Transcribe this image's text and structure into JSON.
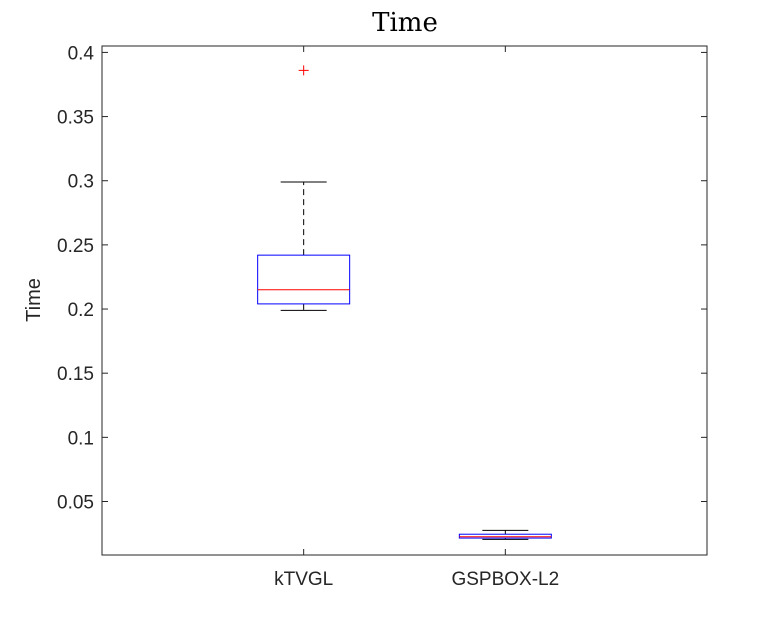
{
  "chart_data": {
    "type": "boxplot",
    "title": "Time",
    "xlabel": "",
    "ylabel": "Time",
    "ylim": [
      0.0083,
      0.405
    ],
    "yticks": [
      "0.05",
      "0.1",
      "0.15",
      "0.2",
      "0.25",
      "0.3",
      "0.35",
      "0.4"
    ],
    "categories": [
      "kTVGL",
      "GSPBOX-L2"
    ],
    "boxes": [
      {
        "category": "kTVGL",
        "whisker_low": 0.199,
        "q1": 0.204,
        "median": 0.215,
        "q3": 0.242,
        "whisker_high": 0.299,
        "outliers": [
          0.386
        ]
      },
      {
        "category": "GSPBOX-L2",
        "whisker_low": 0.0205,
        "q1": 0.0215,
        "median": 0.0225,
        "q3": 0.0245,
        "whisker_high": 0.0275,
        "outliers": []
      }
    ],
    "grid": false,
    "colors": {
      "box": "#0000ff",
      "median": "#ff0000",
      "whisker": "#000000",
      "outlier": "#ff0000",
      "axes": "#262626"
    }
  }
}
